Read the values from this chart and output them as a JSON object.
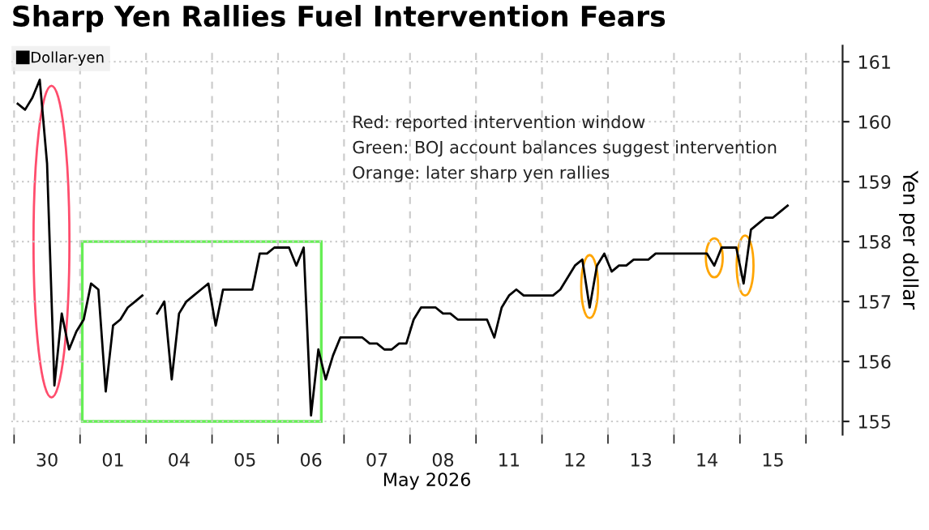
{
  "chart_data": {
    "type": "line",
    "title": "Sharp Yen Rallies Fuel Intervention Fears",
    "xlabel": "May 2026",
    "ylabel": "Yen per dollar",
    "annotations": [
      "Red: reported intervention window",
      "Green: BOJ account balances suggest intervention",
      "Orange: later sharp yen rallies"
    ],
    "categories": [
      null,
      null,
      null,
      null,
      "30",
      null,
      null,
      null,
      null,
      null,
      null,
      null,
      null,
      "01",
      null,
      null,
      null,
      null,
      null,
      null,
      null,
      null,
      "04",
      null,
      null,
      null,
      null,
      null,
      null,
      null,
      null,
      "05",
      null,
      null,
      null,
      null,
      null,
      null,
      null,
      null,
      "06",
      null,
      null,
      null,
      null,
      null,
      null,
      null,
      null,
      "07",
      null,
      null,
      null,
      null,
      null,
      null,
      null,
      null,
      "08",
      null,
      null,
      null,
      null,
      null,
      null,
      null,
      null,
      "11",
      null,
      null,
      null,
      null,
      null,
      null,
      null,
      null,
      "12",
      null,
      null,
      null,
      null,
      null,
      null,
      null,
      null,
      "13",
      null,
      null,
      null,
      null,
      null,
      null,
      null,
      null,
      "14",
      null,
      null,
      null,
      null,
      null,
      null,
      null,
      null,
      "15",
      null,
      null,
      null,
      null
    ],
    "series": [
      {
        "name": "Dollar-yen",
        "color": "#000000",
        "values": [
          160.3,
          160.2,
          160.4,
          160.7,
          159.3,
          155.6,
          156.8,
          156.2,
          156.5,
          156.7,
          157.3,
          157.2,
          155.5,
          156.6,
          156.7,
          156.9,
          157.0,
          157.1,
          null,
          156.8,
          157.0,
          155.7,
          156.8,
          157.0,
          157.1,
          157.2,
          157.3,
          156.6,
          157.2,
          157.2,
          157.2,
          157.2,
          157.2,
          157.8,
          157.8,
          157.9,
          157.9,
          157.9,
          157.6,
          157.9,
          155.1,
          156.2,
          155.7,
          156.1,
          156.4,
          156.4,
          156.4,
          156.4,
          156.3,
          156.3,
          156.2,
          156.2,
          156.3,
          156.3,
          156.7,
          156.9,
          156.9,
          156.9,
          156.8,
          156.8,
          156.7,
          156.7,
          156.7,
          156.7,
          156.7,
          156.4,
          156.9,
          157.1,
          157.2,
          157.1,
          157.1,
          157.1,
          157.1,
          157.1,
          157.2,
          157.4,
          157.6,
          157.7,
          156.9,
          157.6,
          157.8,
          157.5,
          157.6,
          157.6,
          157.7,
          157.7,
          157.7,
          157.8,
          157.8,
          157.8,
          157.8,
          157.8,
          157.8,
          157.8,
          157.8,
          157.6,
          157.9,
          157.9,
          157.9,
          157.3,
          158.2,
          158.3,
          158.4,
          158.4,
          158.5,
          158.6,
          null,
          null
        ]
      }
    ],
    "ylim": [
      154.78,
      161.27
    ],
    "yticks": [
      155,
      156,
      157,
      158,
      159,
      160,
      161
    ],
    "grid": true,
    "legend": "top left",
    "marker": "none",
    "line_style": "solid"
  }
}
